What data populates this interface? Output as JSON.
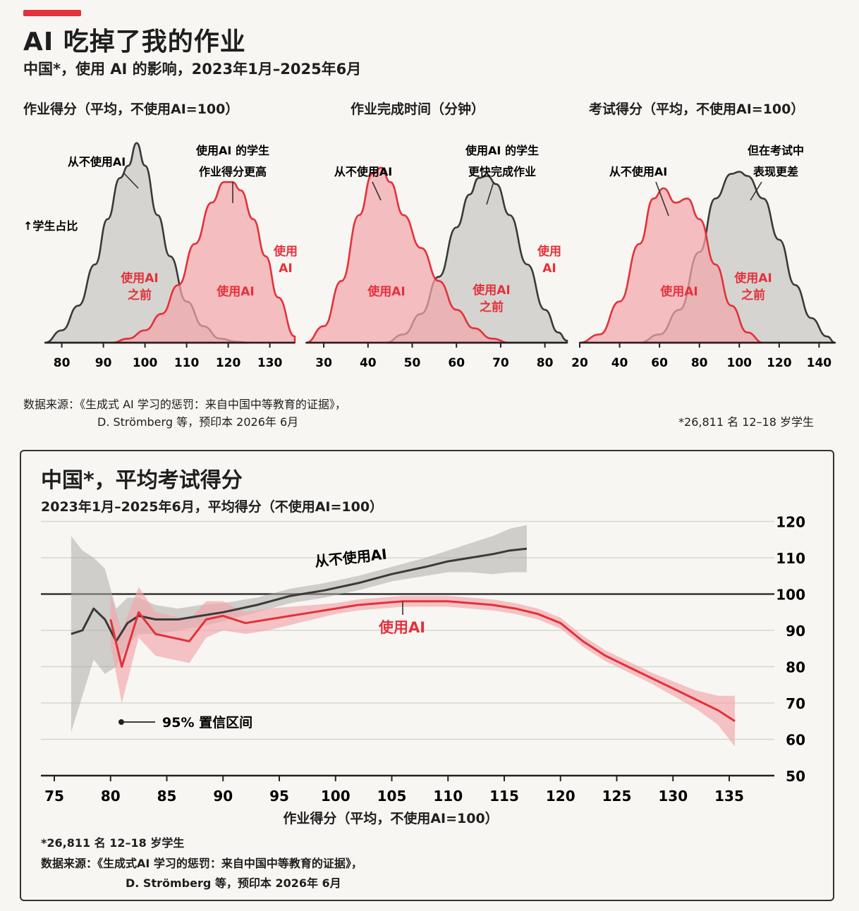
{
  "header": {
    "title": "AI 吃掉了我的作业",
    "subtitle": "中国*，使用 AI 的影响，2023年1月–2025年6月"
  },
  "colors": {
    "accent": "#e4313b",
    "ai": "#e4313b",
    "ai_fill": "#f2a6ab",
    "no_ai": "#3a3a3a",
    "no_ai_fill": "#c9c8c4"
  },
  "y_axis_note": "↑学生占比",
  "panels": [
    {
      "title": "作业得分（平均，不使用AI=100）",
      "annotations": {
        "no_ai": "从不使用AI",
        "highlight_line1": "使用AI 的学生",
        "highlight_line2": "作业得分更高",
        "before_line1": "使用AI",
        "before_line2": "之前",
        "with_ai_inside": "使用AI",
        "with_ai_side_line1": "使用",
        "with_ai_side_line2": "AI"
      }
    },
    {
      "title": "作业完成时间（分钟）",
      "annotations": {
        "no_ai": "从不使用AI",
        "highlight_line1": "使用AI 的学生",
        "highlight_line2": "更快完成作业",
        "with_ai_inside": "使用AI",
        "before_line1": "使用AI",
        "before_line2": "之前",
        "with_ai_side_line1": "使用",
        "with_ai_side_line2": "AI"
      }
    },
    {
      "title": "考试得分（平均，不使用AI=100）",
      "annotations": {
        "no_ai": "从不使用AI",
        "highlight_line1": "但在考试中",
        "highlight_line2": "表现更差",
        "with_ai_inside": "使用AI",
        "before_line1": "使用AI",
        "before_line2": "之前"
      }
    }
  ],
  "top_source": {
    "line1": "数据来源：《生成式 AI 学习的惩罚：来自中国中等教育的证据》，",
    "line2": "D. Strömberg 等，预印本 2026年 6月",
    "footnote": "*26,811 名 12–18 岁学生"
  },
  "bottom": {
    "title": "中国*，平均考试得分",
    "subtitle": "2023年1月–2025年6月，平均得分（不使用AI=100）",
    "xlabel": "作业得分（平均，不使用AI=100）",
    "series_label_no_ai": "从不使用AI",
    "series_label_ai": "使用AI",
    "ci_label": "95% 置信区间",
    "footnote": "*26,811 名 12–18 岁学生",
    "source_line1": "数据来源：《生成式AI 学习的惩罚：来自中国中等教育的证据》，",
    "source_line2": "D. Strömberg 等，预印本 2026年 6月"
  },
  "chart_data": [
    {
      "type": "area",
      "title": "作业得分（平均，不使用AI=100）",
      "ylabel": "↑学生占比",
      "xlim": [
        76,
        136
      ],
      "x_ticks": [
        80,
        90,
        100,
        110,
        120,
        130
      ],
      "series": [
        {
          "name": "使用AI之前",
          "x": [
            76,
            80,
            84,
            88,
            91,
            94,
            96,
            98,
            100,
            103,
            106,
            110,
            114,
            118,
            122,
            125
          ],
          "y": [
            0.0,
            0.06,
            0.18,
            0.38,
            0.6,
            0.8,
            0.86,
            0.97,
            0.86,
            0.62,
            0.42,
            0.2,
            0.08,
            0.02,
            0.005,
            0.0
          ]
        },
        {
          "name": "使用AI",
          "x": [
            92,
            96,
            100,
            104,
            108,
            112,
            116,
            119,
            121,
            123,
            126,
            129,
            132,
            136
          ],
          "y": [
            0.0,
            0.02,
            0.06,
            0.14,
            0.28,
            0.48,
            0.68,
            0.78,
            0.78,
            0.74,
            0.6,
            0.42,
            0.22,
            0.03
          ]
        }
      ]
    },
    {
      "type": "area",
      "title": "作业完成时间（分钟）",
      "xlim": [
        26,
        85
      ],
      "x_ticks": [
        30,
        40,
        50,
        60,
        70,
        80
      ],
      "series": [
        {
          "name": "使用AI",
          "x": [
            26,
            30,
            34,
            38,
            41,
            43,
            45,
            48,
            52,
            56,
            60,
            64,
            68,
            72
          ],
          "y": [
            0.0,
            0.08,
            0.3,
            0.62,
            0.82,
            0.85,
            0.78,
            0.62,
            0.46,
            0.3,
            0.16,
            0.07,
            0.02,
            0.0
          ]
        },
        {
          "name": "使用AI之前",
          "x": [
            44,
            48,
            52,
            56,
            60,
            63,
            65,
            67,
            69,
            72,
            76,
            80,
            83,
            85
          ],
          "y": [
            0.0,
            0.04,
            0.14,
            0.32,
            0.56,
            0.72,
            0.8,
            0.81,
            0.77,
            0.62,
            0.38,
            0.16,
            0.05,
            0.01
          ]
        }
      ]
    },
    {
      "type": "area",
      "title": "考试得分（平均，不使用AI=100）",
      "xlim": [
        20,
        148
      ],
      "x_ticks": [
        20,
        40,
        60,
        80,
        100,
        120,
        140
      ],
      "series": [
        {
          "name": "使用AI",
          "x": [
            20,
            30,
            40,
            50,
            57,
            62,
            68,
            74,
            80,
            88,
            96,
            104,
            112
          ],
          "y": [
            0.0,
            0.04,
            0.2,
            0.48,
            0.7,
            0.75,
            0.68,
            0.7,
            0.6,
            0.38,
            0.18,
            0.05,
            0.0
          ]
        },
        {
          "name": "使用AI之前",
          "x": [
            50,
            60,
            70,
            80,
            88,
            96,
            100,
            104,
            112,
            120,
            128,
            136,
            144,
            148
          ],
          "y": [
            0.0,
            0.04,
            0.16,
            0.44,
            0.7,
            0.82,
            0.83,
            0.81,
            0.7,
            0.5,
            0.28,
            0.12,
            0.03,
            0.0
          ]
        }
      ]
    },
    {
      "type": "line",
      "title": "中国*，平均考试得分",
      "xlabel": "作业得分（平均，不使用AI=100）",
      "xlim": [
        74,
        139
      ],
      "ylim": [
        50,
        120
      ],
      "x_ticks": [
        75,
        80,
        85,
        90,
        95,
        100,
        105,
        110,
        115,
        120,
        125,
        130,
        135
      ],
      "y_ticks": [
        50,
        60,
        70,
        80,
        90,
        100,
        110,
        120
      ],
      "reference_y": 100,
      "series": [
        {
          "name": "从不使用AI",
          "x": [
            76.5,
            77.5,
            78.5,
            79.5,
            80.5,
            81.5,
            82.5,
            84,
            86,
            88,
            90,
            93,
            96,
            99,
            102,
            105,
            108,
            110,
            112,
            114,
            115.5,
            117
          ],
          "y": [
            89,
            90,
            96,
            93,
            87,
            92,
            94,
            93,
            93,
            94,
            95,
            97,
            99.5,
            101,
            103,
            105.5,
            107.5,
            109,
            110,
            111,
            112,
            112.5
          ],
          "ci_low": [
            62,
            72,
            82,
            78,
            80,
            86,
            89,
            89,
            90,
            91,
            92.5,
            95,
            97.5,
            99,
            101,
            103.5,
            105,
            106,
            106,
            105.5,
            106,
            106
          ],
          "ci_high": [
            116,
            112,
            110,
            107,
            96,
            99,
            99,
            97,
            96,
            97,
            97.5,
            99,
            101.5,
            103,
            105,
            107.5,
            110,
            112,
            114,
            116,
            118,
            119
          ]
        },
        {
          "name": "使用AI",
          "x": [
            80,
            81,
            82.5,
            84,
            85.5,
            87,
            88.5,
            90,
            92,
            94,
            96,
            98,
            100,
            102,
            104,
            106,
            108,
            110,
            112,
            114,
            116,
            118,
            120,
            122,
            124,
            126,
            128,
            130,
            132,
            134,
            135.5
          ],
          "y": [
            93,
            80,
            95,
            89,
            88,
            87,
            93,
            94,
            92,
            93,
            94,
            95,
            96,
            97,
            97.5,
            98,
            98,
            98,
            97.5,
            97,
            96,
            94.5,
            92,
            87,
            83,
            80,
            77,
            74,
            71,
            68,
            65
          ],
          "ci_low": [
            86,
            70,
            88,
            83,
            82,
            81,
            88,
            90,
            89,
            90,
            91.5,
            93,
            94.5,
            95.5,
            96,
            96.5,
            96.5,
            96.5,
            96,
            95.5,
            94.5,
            93,
            90.5,
            85.5,
            81.5,
            78.5,
            75.5,
            72,
            68.5,
            64,
            58
          ],
          "ci_high": [
            100,
            90,
            102,
            95,
            94,
            93,
            98,
            98,
            95,
            96,
            96.5,
            97,
            97.5,
            98.5,
            99,
            99.5,
            99.5,
            99.5,
            99,
            98.5,
            97.5,
            96,
            93.5,
            88.5,
            84.5,
            81.5,
            78.5,
            76,
            73.5,
            72,
            72
          ]
        }
      ]
    }
  ]
}
